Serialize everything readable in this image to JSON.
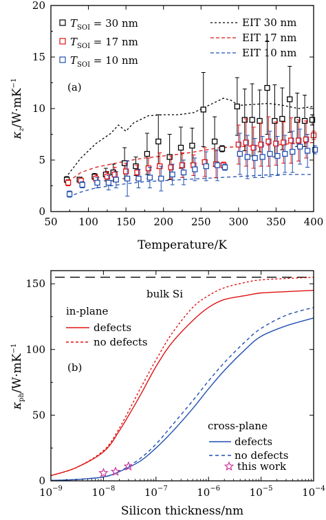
{
  "colors": {
    "black": "#000000",
    "red": "#e01010",
    "blue": "#1f4fb0",
    "magenta": "#cc3399"
  },
  "chart_data": [
    {
      "type": "scatter",
      "panel_label": "(a)",
      "xlabel": "Temperature/K",
      "ylabel": "κ",
      "ylabel_sub": "z",
      "ylabel_unit": "/W·mK",
      "ylabel_sup": "−1",
      "xlim": [
        50,
        400
      ],
      "ylim": [
        0,
        20
      ],
      "xticks": [
        50,
        100,
        150,
        200,
        250,
        300,
        350,
        400
      ],
      "yticks": [
        0,
        5,
        10,
        15,
        20
      ],
      "grid": false,
      "legend_position": "top",
      "series": [
        {
          "name_main": "T",
          "name_sub": "SOI",
          "name_rest": " = 30 nm",
          "color": "black",
          "marker": "square",
          "x": [
            73,
            90,
            110,
            125,
            135,
            150,
            165,
            180,
            195,
            210,
            225,
            240,
            255,
            270,
            280,
            300,
            310,
            320,
            330,
            340,
            350,
            360,
            370,
            380,
            390,
            400
          ],
          "y": [
            3.1,
            3.1,
            3.4,
            3.6,
            3.8,
            4.7,
            4.4,
            5.6,
            6.8,
            5.3,
            6.2,
            6.4,
            9.9,
            6.8,
            6.1,
            10.2,
            8.9,
            8.9,
            8.8,
            12.0,
            8.8,
            9.0,
            10.9,
            8.9,
            8.8,
            8.9
          ],
          "err": [
            0.3,
            0.2,
            0.3,
            0.6,
            0.8,
            1.5,
            0.9,
            2.0,
            2.6,
            2.2,
            2.0,
            1.7,
            3.6,
            2.4,
            0.3,
            2.8,
            3.0,
            3.5,
            3.0,
            4.5,
            3.5,
            3.0,
            3.2,
            2.6,
            2.5,
            0.5
          ]
        },
        {
          "name_main": "T",
          "name_sub": "SOI",
          "name_rest": " = 17 nm",
          "color": "red",
          "marker": "square",
          "x": [
            73,
            90,
            110,
            125,
            135,
            150,
            165,
            180,
            195,
            210,
            225,
            240,
            255,
            270,
            280,
            300,
            310,
            320,
            330,
            340,
            350,
            360,
            370,
            380,
            390,
            400
          ],
          "y": [
            2.8,
            3.0,
            3.2,
            3.4,
            3.6,
            3.9,
            3.8,
            4.2,
            4.4,
            4.3,
            4.5,
            4.5,
            4.8,
            4.6,
            4.5,
            6.5,
            6.7,
            6.2,
            6.5,
            6.8,
            6.6,
            6.7,
            6.9,
            6.9,
            7.0,
            7.4
          ],
          "err": [
            0.3,
            0.2,
            0.4,
            0.5,
            0.7,
            0.8,
            0.7,
            1.0,
            1.3,
            1.1,
            1.2,
            1.0,
            1.4,
            1.3,
            0.3,
            1.9,
            2.3,
            2.0,
            2.1,
            2.4,
            2.1,
            2.0,
            2.2,
            2.0,
            1.8,
            0.4
          ]
        },
        {
          "name_main": "T",
          "name_sub": "SOI",
          "name_rest": " = 10 nm",
          "color": "blue",
          "marker": "square",
          "x": [
            73,
            90,
            110,
            125,
            135,
            150,
            165,
            180,
            195,
            210,
            225,
            240,
            255,
            270,
            280,
            300,
            310,
            320,
            330,
            340,
            350,
            360,
            370,
            380,
            390,
            400
          ],
          "y": [
            1.7,
            2.6,
            2.8,
            2.8,
            3.1,
            3.2,
            3.2,
            3.3,
            3.2,
            3.6,
            3.8,
            4.1,
            4.4,
            4.5,
            4.3,
            5.6,
            5.3,
            5.2,
            5.3,
            5.6,
            5.4,
            5.6,
            5.8,
            6.3,
            5.9,
            6.0
          ],
          "err": [
            0.3,
            0.3,
            0.5,
            0.7,
            0.8,
            1.7,
            0.9,
            1.0,
            1.2,
            1.0,
            1.2,
            1.1,
            1.4,
            1.5,
            0.3,
            2.0,
            2.1,
            1.9,
            2.0,
            2.2,
            1.9,
            1.8,
            2.0,
            1.7,
            1.6,
            0.4
          ]
        },
        {
          "name": "EIT 30 nm",
          "color": "black",
          "dash": "short",
          "x": [
            73,
            90,
            110,
            130,
            140,
            150,
            160,
            180,
            200,
            220,
            240,
            260,
            280,
            290,
            300,
            320,
            340,
            360,
            380,
            400
          ],
          "y": [
            3.6,
            5.2,
            6.6,
            7.6,
            8.4,
            7.8,
            8.6,
            9.3,
            9.4,
            9.4,
            9.6,
            10.3,
            11.0,
            10.8,
            10.3,
            10.4,
            10.5,
            10.3,
            10.0,
            10.2
          ]
        },
        {
          "name": "EIT 17 nm",
          "color": "red",
          "dash": "medium",
          "x": [
            73,
            90,
            110,
            130,
            150,
            175,
            200,
            225,
            250,
            275,
            300,
            325,
            350,
            375,
            400
          ],
          "y": [
            2.9,
            3.8,
            4.3,
            4.6,
            4.9,
            5.2,
            5.4,
            5.6,
            5.9,
            6.2,
            6.3,
            6.4,
            6.5,
            6.6,
            6.7
          ]
        },
        {
          "name": "EIT 10 nm",
          "color": "blue",
          "dash": "medium",
          "x": [
            73,
            90,
            110,
            130,
            150,
            175,
            200,
            225,
            250,
            275,
            300,
            325,
            350,
            375,
            400
          ],
          "y": [
            1.4,
            1.9,
            2.3,
            2.5,
            2.7,
            2.9,
            3.0,
            3.1,
            3.2,
            3.3,
            3.4,
            3.5,
            3.6,
            3.6,
            3.6
          ]
        }
      ]
    },
    {
      "type": "line",
      "panel_label": "(b)",
      "xlabel": "Silicon thickness/nm",
      "ylabel": "κ",
      "ylabel_sub": "ph",
      "ylabel_unit": "/W·mK",
      "ylabel_sup": "−1",
      "x_scale": "log",
      "xlim": [
        1e-09,
        0.0001
      ],
      "ylim": [
        0,
        160
      ],
      "xticks": [
        1e-09,
        1e-08,
        1e-07,
        1e-06,
        1e-05,
        0.0001
      ],
      "xtick_labels": [
        [
          "10",
          "−9"
        ],
        [
          "10",
          "−8"
        ],
        [
          "10",
          "−7"
        ],
        [
          "10",
          "−6"
        ],
        [
          "10",
          "−5"
        ],
        [
          "10",
          "−4"
        ]
      ],
      "yticks": [
        0,
        50,
        100,
        150
      ],
      "grid": false,
      "reference_line": {
        "y": 155,
        "label": "bulk Si"
      },
      "legend_groups": [
        {
          "title": "in-plane",
          "items": [
            "defects",
            "no defects"
          ],
          "position": "upper-left"
        },
        {
          "title": "cross-plane",
          "items": [
            "defects",
            "no defects"
          ],
          "position": "lower-right"
        }
      ],
      "series": [
        {
          "name": "in-plane defects",
          "color": "red",
          "dash": "solid",
          "x": [
            1e-09,
            3e-09,
            1e-08,
            2e-08,
            5e-08,
            1e-07,
            2e-07,
            5e-07,
            1e-06,
            2e-06,
            5e-06,
            1e-05,
            3e-05,
            0.0001
          ],
          "y": [
            4,
            10,
            22,
            38,
            65,
            87,
            105,
            122,
            132,
            138,
            141,
            143,
            144,
            145
          ]
        },
        {
          "name": "in-plane no defects",
          "color": "red",
          "dash": "short",
          "x": [
            1e-09,
            3e-09,
            1e-08,
            2e-08,
            5e-08,
            1e-07,
            2e-07,
            5e-07,
            1e-06,
            2e-06,
            5e-06,
            1e-05,
            3e-05,
            0.0001
          ],
          "y": [
            4,
            10,
            23,
            40,
            70,
            92,
            112,
            132,
            141,
            147,
            151,
            153,
            154,
            155
          ]
        },
        {
          "name": "cross-plane defects",
          "color": "blue",
          "dash": "solid",
          "x": [
            1e-09,
            3e-09,
            1e-08,
            2e-08,
            5e-08,
            1e-07,
            2e-07,
            5e-07,
            1e-06,
            2e-06,
            5e-06,
            1e-05,
            3e-05,
            0.0001
          ],
          "y": [
            0.3,
            1,
            3,
            7,
            15,
            25,
            37,
            55,
            70,
            84,
            100,
            110,
            118,
            124
          ]
        },
        {
          "name": "cross-plane no defects",
          "color": "blue",
          "dash": "medium",
          "x": [
            1e-09,
            3e-09,
            1e-08,
            2e-08,
            5e-08,
            1e-07,
            2e-07,
            5e-07,
            1e-06,
            2e-06,
            5e-06,
            1e-05,
            3e-05,
            0.0001
          ],
          "y": [
            0.3,
            1,
            3,
            7,
            17,
            28,
            42,
            61,
            76,
            90,
            106,
            116,
            126,
            132
          ]
        },
        {
          "name": "this work",
          "color": "magenta",
          "marker": "star",
          "x": [
            1e-08,
            1.7e-08,
            3e-08
          ],
          "y": [
            6,
            7,
            11
          ]
        }
      ]
    }
  ]
}
